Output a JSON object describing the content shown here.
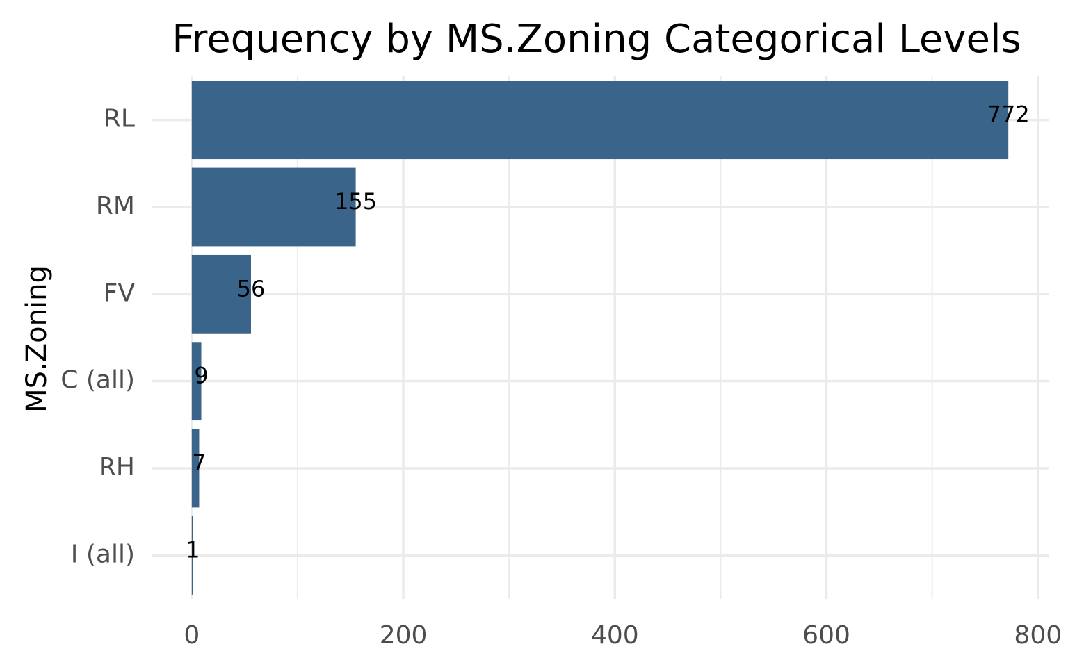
{
  "chart_data": {
    "type": "bar",
    "orientation": "horizontal",
    "title": "Frequency by MS.Zoning Categorical Levels",
    "xlabel": "",
    "ylabel": "MS.Zoning",
    "categories": [
      "RL",
      "RM",
      "FV",
      "C (all)",
      "RH",
      "I (all)"
    ],
    "values": [
      772,
      155,
      56,
      9,
      7,
      1
    ],
    "data_labels": [
      "772",
      "155",
      "56",
      "9",
      "7",
      "1"
    ],
    "xlim": [
      -38,
      810
    ],
    "x_ticks": [
      0,
      200,
      400,
      600,
      800
    ],
    "x_tick_labels": [
      "0",
      "200",
      "400",
      "600",
      "800"
    ],
    "grid": true,
    "bar_color": "#3a6489",
    "grid_color": "#ebebeb",
    "legend": "none"
  }
}
